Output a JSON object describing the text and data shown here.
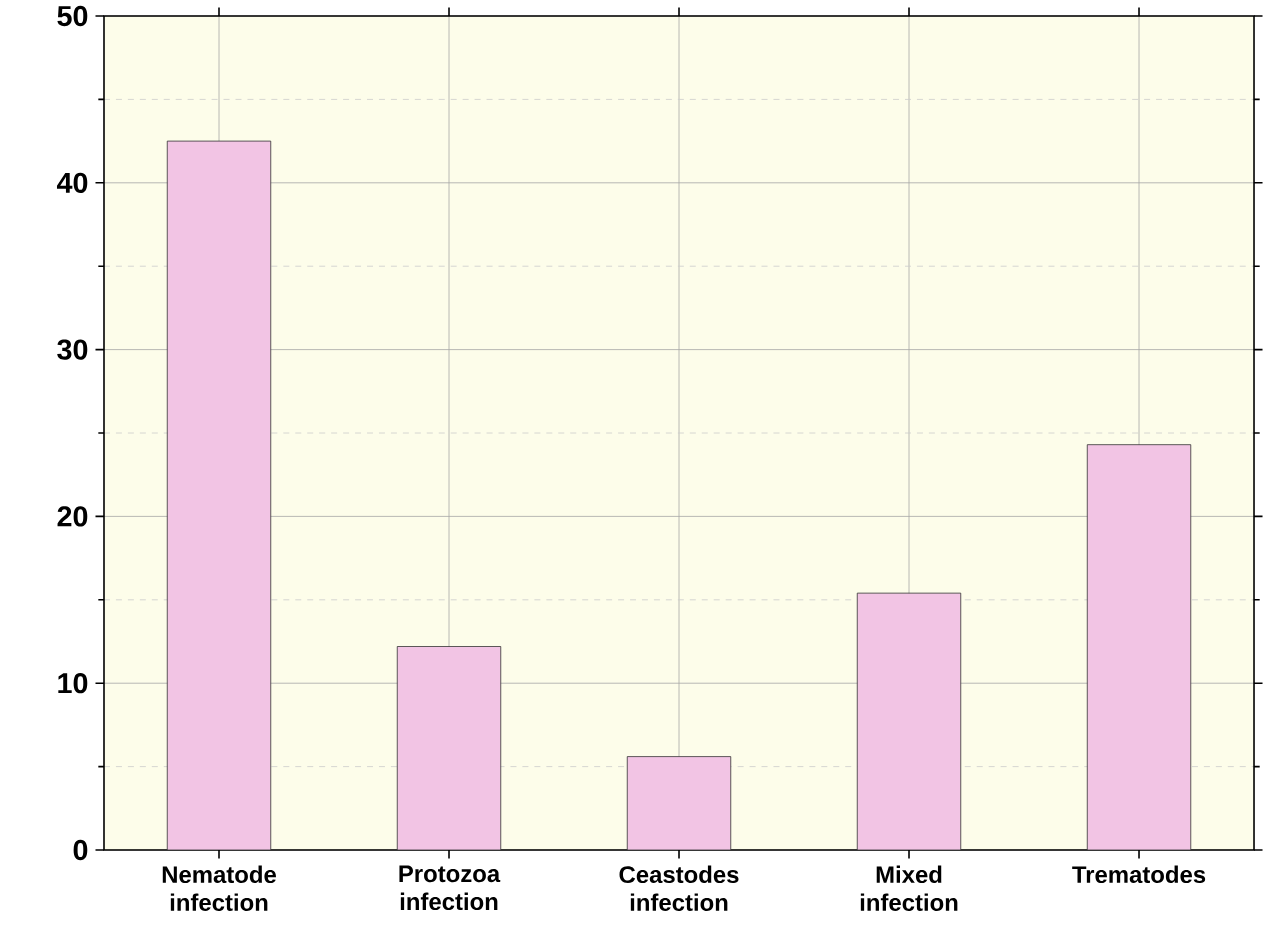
{
  "chart_data": {
    "type": "bar",
    "categories": [
      "Nematode\ninfection",
      "Protozoa\ninfection",
      "Ceastodes\ninfection",
      "Mixed\ninfection",
      "Trematodes"
    ],
    "values": [
      42.5,
      12.2,
      5.6,
      15.4,
      24.3
    ],
    "color": "#f2c4e4",
    "ylim": [
      0,
      50
    ],
    "yticks": [
      0,
      10,
      20,
      30,
      40,
      50
    ],
    "grid": true
  }
}
